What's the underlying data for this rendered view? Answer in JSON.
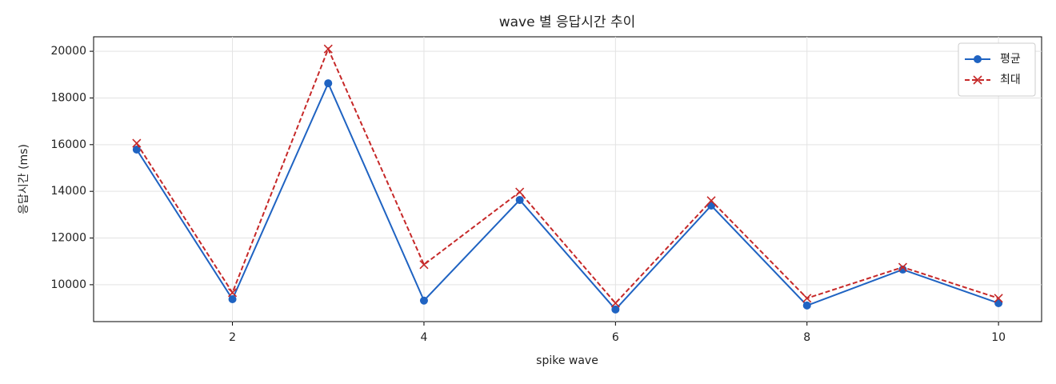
{
  "chart_data": {
    "type": "line",
    "title": "wave 별 응답시간 추이",
    "x_label": "spike wave",
    "y_label": "응답시간 (ms)",
    "x": [
      1,
      2,
      3,
      4,
      5,
      6,
      7,
      8,
      9,
      10
    ],
    "series": [
      {
        "name": "평균",
        "color": "#1f63c2",
        "marker": "o",
        "dash": false,
        "values": [
          15790,
          9380,
          18630,
          9320,
          13630,
          8940,
          13390,
          9110,
          10650,
          9210
        ]
      },
      {
        "name": "최대",
        "color": "#c62828",
        "marker": "x",
        "dash": true,
        "values": [
          16060,
          9660,
          20100,
          10860,
          13970,
          9210,
          13600,
          9420,
          10750,
          9420
        ]
      }
    ],
    "xlim": [
      0.55,
      10.45
    ],
    "xticks": [
      2,
      4,
      6,
      8,
      10
    ],
    "ylim": [
      8420,
      20620
    ],
    "yticks": [
      10000,
      12000,
      14000,
      16000,
      18000,
      20000
    ],
    "grid": true,
    "legend": "upper right"
  }
}
